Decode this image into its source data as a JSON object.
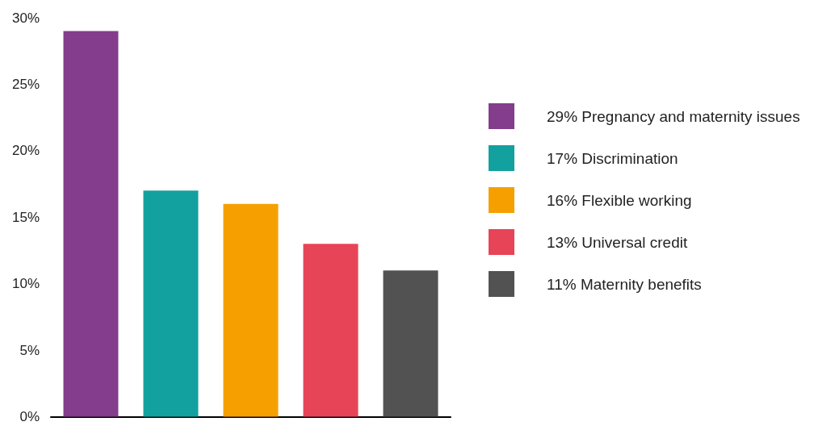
{
  "chart_data": {
    "type": "bar",
    "categories": [
      null,
      null,
      null,
      null,
      null
    ],
    "series": [
      {
        "name": "29% Pregnancy and maternity issues",
        "color": "#843c8c",
        "values": [
          29,
          null,
          null,
          null,
          null
        ]
      },
      {
        "name": "17% Discrimination",
        "color": "#12a19f",
        "values": [
          null,
          17,
          null,
          null,
          null
        ]
      },
      {
        "name": "16% Flexible working",
        "color": "#f5a000",
        "values": [
          null,
          null,
          16,
          null,
          null
        ]
      },
      {
        "name": "13% Universal credit",
        "color": "#e84457",
        "values": [
          null,
          null,
          null,
          13,
          null
        ]
      },
      {
        "name": "11% Maternity benefits",
        "color": "#525252",
        "values": [
          null,
          null,
          null,
          null,
          11
        ]
      }
    ],
    "ylim": [
      0,
      30
    ],
    "yticks": [
      {
        "value": 0,
        "label": "0%"
      },
      {
        "value": 5,
        "label": "5%"
      },
      {
        "value": 10,
        "label": "10%"
      },
      {
        "value": 15,
        "label": "15%"
      },
      {
        "value": 20,
        "label": "20%"
      },
      {
        "value": 25,
        "label": "25%"
      },
      {
        "value": 30,
        "label": "30%"
      }
    ],
    "grid": false,
    "legend": "right"
  }
}
